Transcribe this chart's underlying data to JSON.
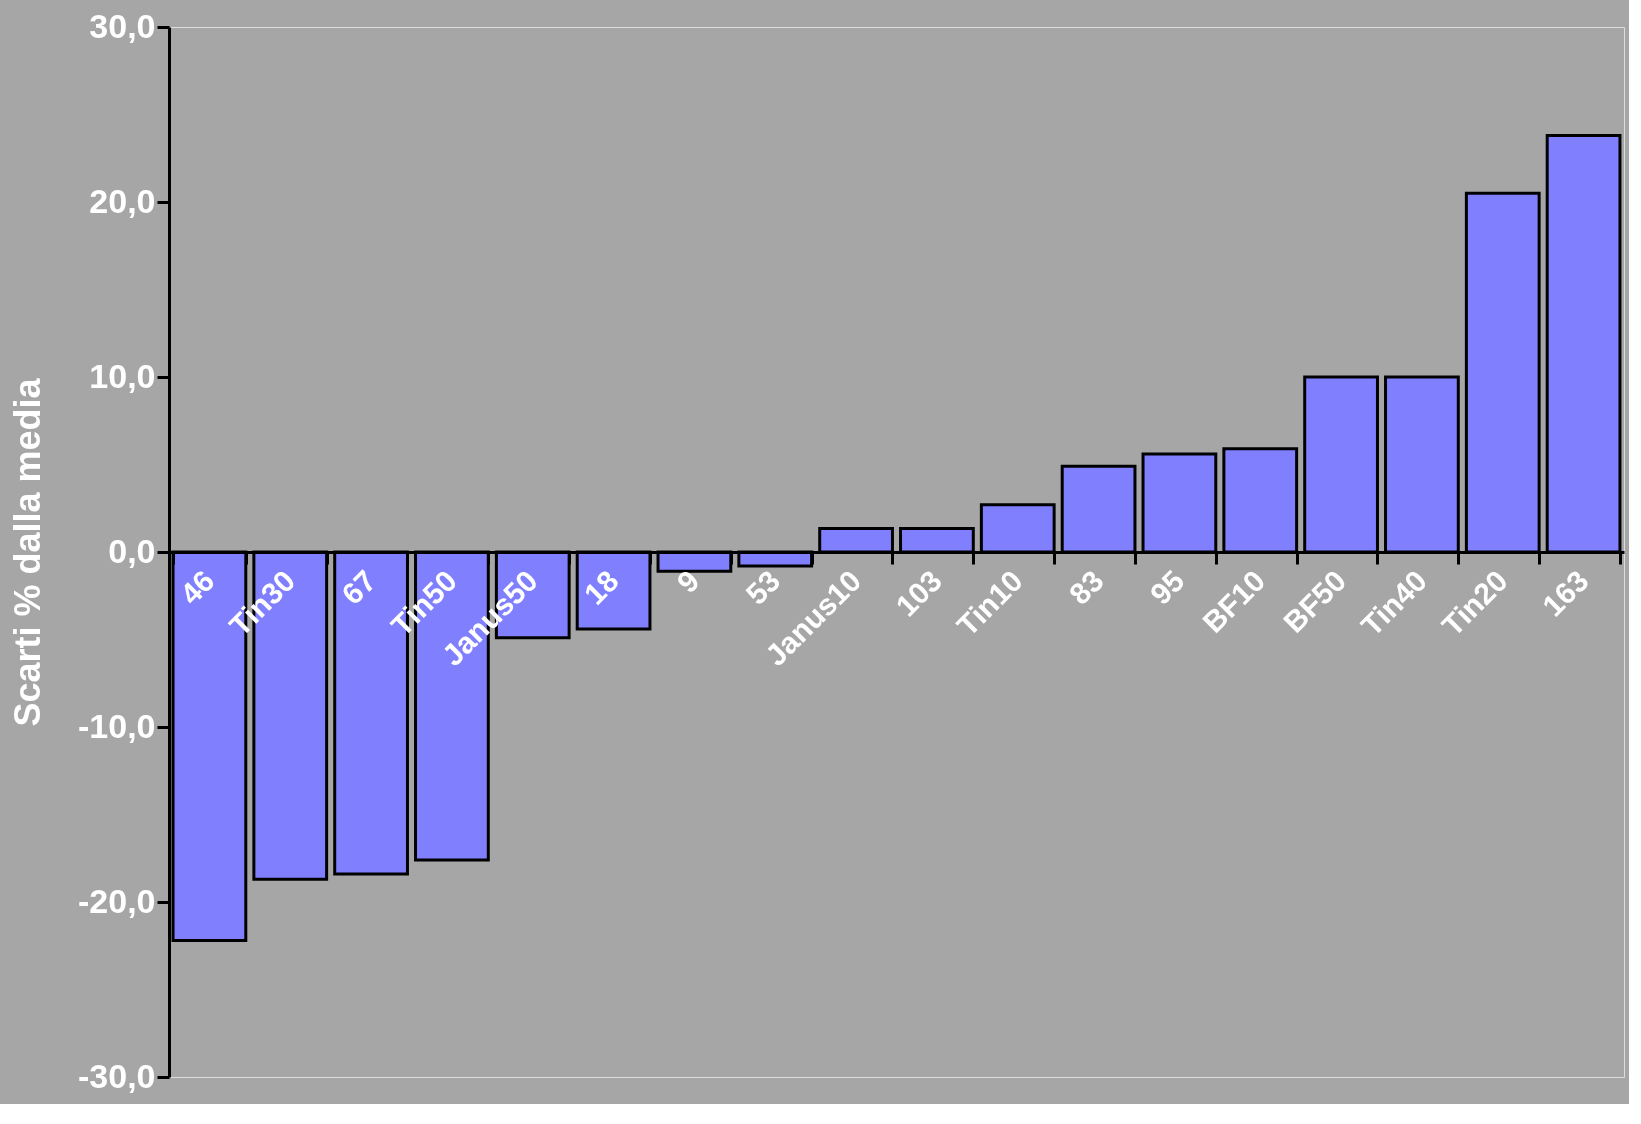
{
  "chart_data": {
    "type": "bar",
    "ylabel": "Scarti % dalla media",
    "categories": [
      "46",
      "Tin30",
      "67",
      "Tin50",
      "Janus50",
      "18",
      "9",
      "53",
      "Janus10",
      "103",
      "Tin10",
      "83",
      "95",
      "BF10",
      "BF50",
      "Tin40",
      "Tin20",
      "163"
    ],
    "values": [
      -22.2,
      -18.7,
      -18.4,
      -17.6,
      -4.9,
      -4.4,
      -1.1,
      -0.8,
      1.35,
      1.35,
      2.7,
      4.9,
      5.6,
      5.9,
      10.0,
      10.0,
      20.5,
      23.8
    ],
    "color": "#8080ff",
    "ylim": [
      -30,
      30
    ],
    "yticks": [
      {
        "value": -30,
        "label": "-30,0"
      },
      {
        "value": -20,
        "label": "-20,0"
      },
      {
        "value": -10,
        "label": "-10,0"
      },
      {
        "value": 0,
        "label": "0,0"
      },
      {
        "value": 10,
        "label": "10,0"
      },
      {
        "value": 20,
        "label": "20,0"
      },
      {
        "value": 30,
        "label": "30,0"
      }
    ],
    "grid": false
  }
}
